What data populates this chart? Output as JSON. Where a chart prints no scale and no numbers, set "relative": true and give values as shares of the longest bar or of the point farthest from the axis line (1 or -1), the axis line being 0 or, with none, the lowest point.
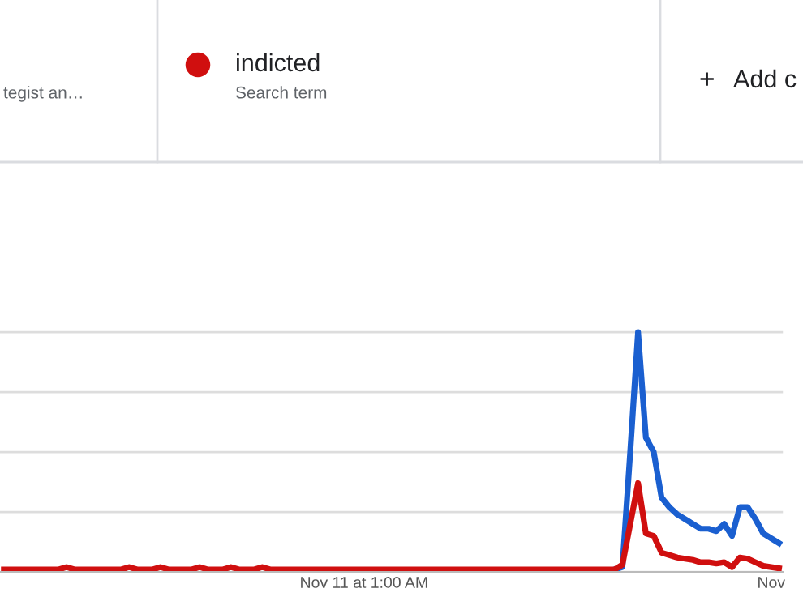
{
  "chart_data": {
    "type": "line",
    "relative": true,
    "grid": "y",
    "legend": "top",
    "marker": "none",
    "line_style": "solid",
    "categories": [
      null,
      null,
      null,
      null,
      null,
      null,
      null,
      null,
      null,
      null,
      null,
      null,
      null,
      null,
      null,
      null,
      null,
      null,
      null,
      null,
      null,
      null,
      null,
      null,
      null,
      null,
      null,
      null,
      null,
      null,
      null,
      null,
      null,
      null,
      null,
      null,
      null,
      null,
      null,
      null,
      null,
      null,
      null,
      null,
      null,
      null,
      "Nov 11 at 1:00 AM",
      null,
      null,
      null,
      null,
      null,
      null,
      null,
      null,
      null,
      null,
      null,
      null,
      null,
      null,
      null,
      null,
      null,
      null,
      null,
      null,
      null,
      null,
      null,
      null,
      null,
      null,
      null,
      null,
      null,
      null,
      null,
      null,
      null,
      null,
      null,
      null,
      null,
      null,
      null,
      null,
      null,
      null,
      null,
      null,
      null,
      null,
      null,
      null,
      null,
      null,
      null,
      "Nov",
      null
    ],
    "series": [
      {
        "color": "#1a5fd0",
        "values": [
          null,
          null,
          null,
          null,
          null,
          null,
          null,
          null,
          null,
          null,
          null,
          null,
          null,
          null,
          null,
          null,
          null,
          null,
          null,
          null,
          null,
          null,
          null,
          null,
          null,
          null,
          null,
          null,
          null,
          null,
          null,
          null,
          null,
          null,
          null,
          null,
          null,
          null,
          null,
          null,
          null,
          null,
          null,
          null,
          null,
          null,
          null,
          null,
          null,
          null,
          null,
          null,
          null,
          null,
          null,
          null,
          null,
          null,
          null,
          null,
          null,
          null,
          null,
          null,
          null,
          null,
          null,
          null,
          null,
          null,
          null,
          null,
          null,
          null,
          null,
          null,
          null,
          null,
          0.01,
          0.02,
          0.5,
          1.0,
          0.56,
          0.5,
          0.31,
          0.27,
          0.24,
          0.22,
          0.2,
          0.18,
          0.18,
          0.17,
          0.2,
          0.15,
          0.27,
          0.27,
          0.22,
          0.16,
          0.14,
          0.12
        ]
      },
      {
        "name": "indicted",
        "color": "#d00f0f",
        "values": [
          0.01,
          0.01,
          0.01,
          0.01,
          0.01,
          0.01,
          0.01,
          0.01,
          0.02,
          0.01,
          0.01,
          0.01,
          0.01,
          0.01,
          0.01,
          0.01,
          0.02,
          0.01,
          0.01,
          0.01,
          0.02,
          0.01,
          0.01,
          0.01,
          0.01,
          0.02,
          0.01,
          0.01,
          0.01,
          0.02,
          0.01,
          0.01,
          0.01,
          0.02,
          0.01,
          0.01,
          0.01,
          0.01,
          0.01,
          0.01,
          0.01,
          0.01,
          0.01,
          0.01,
          0.01,
          0.01,
          0.01,
          0.01,
          0.01,
          0.01,
          0.01,
          0.01,
          0.01,
          0.01,
          0.01,
          0.01,
          0.01,
          0.01,
          0.01,
          0.01,
          0.01,
          0.01,
          0.01,
          0.01,
          0.01,
          0.01,
          0.01,
          0.01,
          0.01,
          0.01,
          0.01,
          0.01,
          0.01,
          0.01,
          0.01,
          0.01,
          0.01,
          0.01,
          0.01,
          0.03,
          0.2,
          0.37,
          0.16,
          0.15,
          0.08,
          0.07,
          0.06,
          0.055,
          0.05,
          0.04,
          0.04,
          0.035,
          0.04,
          0.02,
          0.06,
          0.055,
          0.04,
          0.025,
          0.02,
          0.015
        ]
      }
    ],
    "annotations": [
      "tegist an…",
      "Search term",
      "+",
      "Add c"
    ]
  }
}
